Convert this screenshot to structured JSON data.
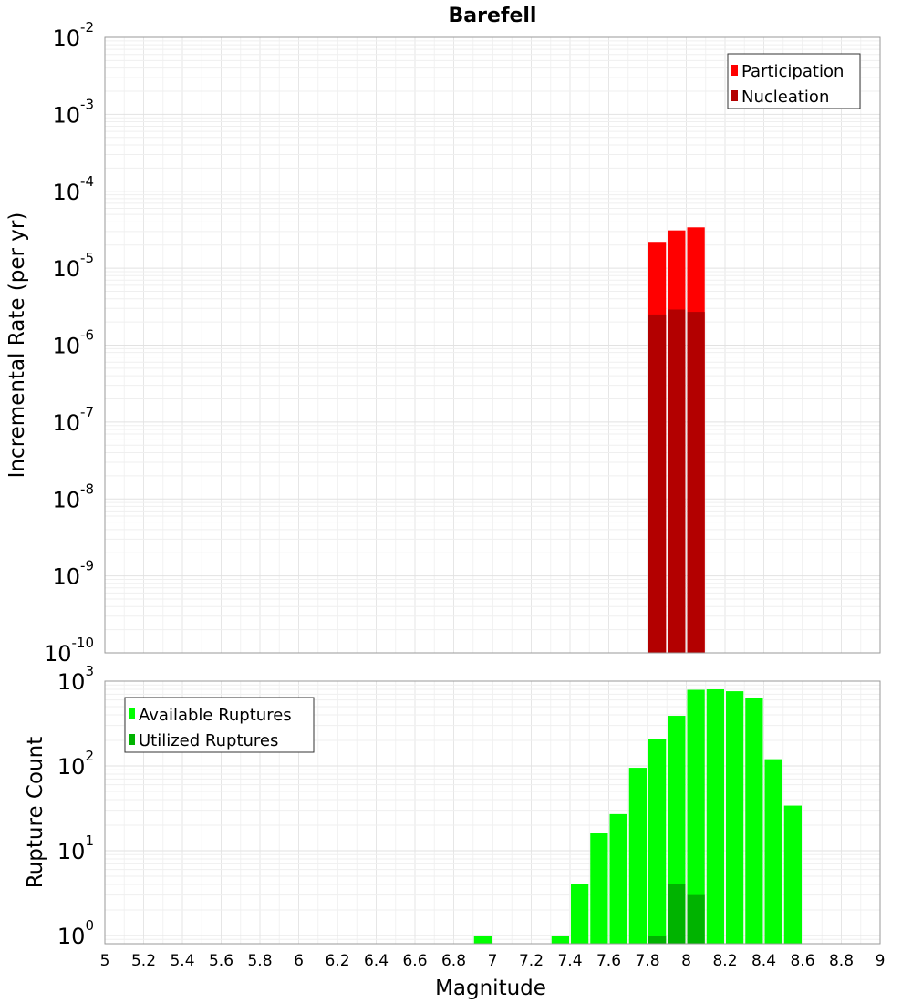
{
  "chart_data": [
    {
      "id": "rate-panel",
      "type": "bar",
      "title": "Barefell",
      "xlabel": "",
      "ylabel": "Incremental Rate (per yr)",
      "yscale": "log",
      "xlim": [
        5,
        9
      ],
      "ylim": [
        1e-10,
        0.01
      ],
      "y_tick_exponents": [
        -10,
        -9,
        -8,
        -7,
        -6,
        -5,
        -4,
        -3,
        -2
      ],
      "y_tick_base": "10",
      "legend_position": "top-right",
      "series": [
        {
          "name": "Participation",
          "color": "#ff0000",
          "x": [
            7.85,
            7.95,
            8.05
          ],
          "values": [
            2.2e-05,
            3.1e-05,
            3.4e-05
          ]
        },
        {
          "name": "Nucleation",
          "color": "#b30000",
          "x": [
            7.85,
            7.95,
            8.05
          ],
          "values": [
            2.5e-06,
            2.9e-06,
            2.7e-06
          ]
        }
      ]
    },
    {
      "id": "count-panel",
      "type": "bar",
      "title": "",
      "xlabel": "Magnitude",
      "ylabel": "Rupture Count",
      "yscale": "log",
      "xlim": [
        5,
        9
      ],
      "ylim": [
        0.8,
        1000
      ],
      "y_tick_exponents": [
        0,
        1,
        2,
        3
      ],
      "y_tick_base": "10",
      "x_ticks": [
        "5",
        "5.2",
        "5.4",
        "5.6",
        "5.8",
        "6",
        "6.2",
        "6.4",
        "6.6",
        "6.8",
        "7",
        "7.2",
        "7.4",
        "7.6",
        "7.8",
        "8",
        "8.2",
        "8.4",
        "8.6",
        "8.8",
        "9"
      ],
      "legend_position": "top-left",
      "series": [
        {
          "name": "Available Ruptures",
          "color": "#00ff00",
          "x": [
            6.95,
            7.35,
            7.45,
            7.55,
            7.65,
            7.75,
            7.85,
            7.95,
            8.05,
            8.15,
            8.25,
            8.35,
            8.45,
            8.55
          ],
          "values": [
            1,
            1,
            4,
            16,
            27,
            95,
            210,
            390,
            790,
            800,
            760,
            640,
            120,
            34
          ]
        },
        {
          "name": "Utilized Ruptures",
          "color": "#00b300",
          "x": [
            7.85,
            7.95,
            8.05
          ],
          "values": [
            1,
            4,
            3
          ]
        }
      ]
    }
  ]
}
